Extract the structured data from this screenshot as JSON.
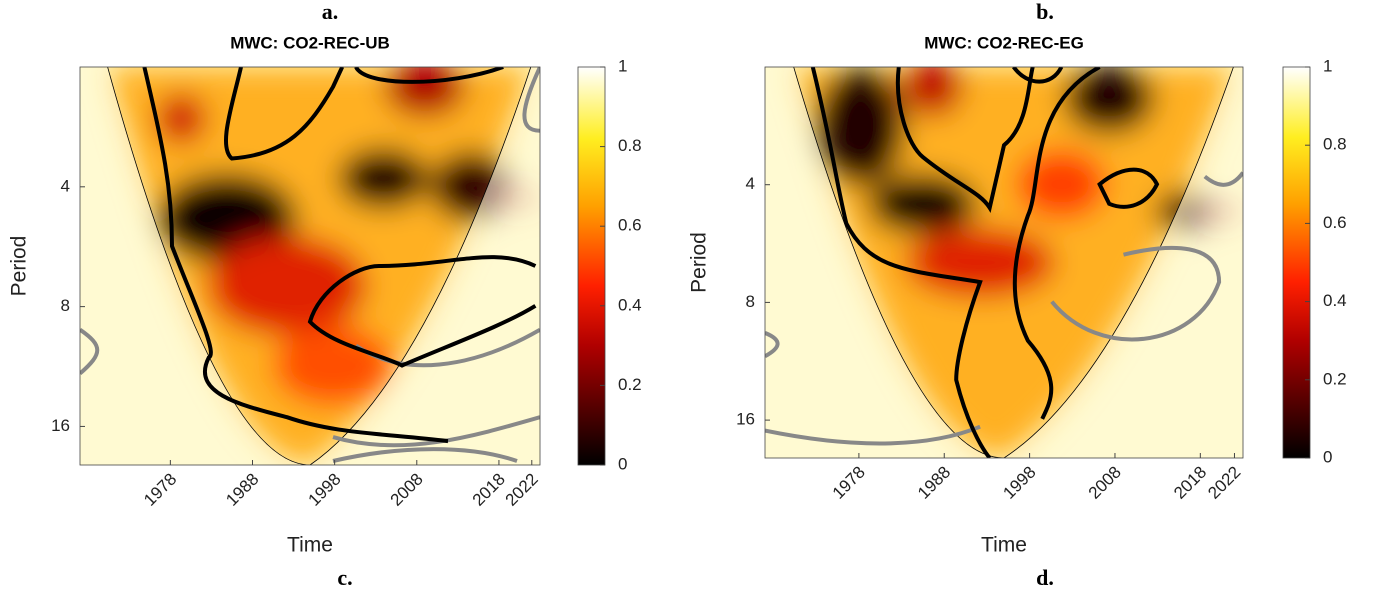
{
  "panel_labels": [
    "a.",
    "b.",
    "c.",
    "d."
  ],
  "chart_data": [
    {
      "type": "wavelet-coherence",
      "title": "MWC: CO2-REC-UB",
      "xlabel": "Time",
      "ylabel": "Period",
      "xlim": [
        1967,
        2023
      ],
      "xticks": [
        1978,
        1988,
        1998,
        2008,
        2018,
        2022
      ],
      "ylim": [
        2,
        20
      ],
      "ylog": true,
      "yreversed": true,
      "yticks": [
        4,
        8,
        16
      ],
      "colorbar": {
        "lim": [
          0,
          1
        ],
        "ticks": [
          0,
          0.2,
          0.4,
          0.6,
          0.8,
          1
        ]
      }
    },
    {
      "type": "wavelet-coherence",
      "title": "MWC: CO2-REC-EG",
      "xlabel": "Time",
      "ylabel": "Period",
      "xlim": [
        1967,
        2023
      ],
      "xticks": [
        1978,
        1988,
        1998,
        2008,
        2018,
        2022
      ],
      "ylim": [
        2,
        20
      ],
      "ylog": true,
      "yreversed": true,
      "yticks": [
        4,
        8,
        16
      ],
      "colorbar": {
        "lim": [
          0,
          1
        ],
        "ticks": [
          0,
          0.2,
          0.4,
          0.6,
          0.8,
          1
        ]
      }
    }
  ]
}
